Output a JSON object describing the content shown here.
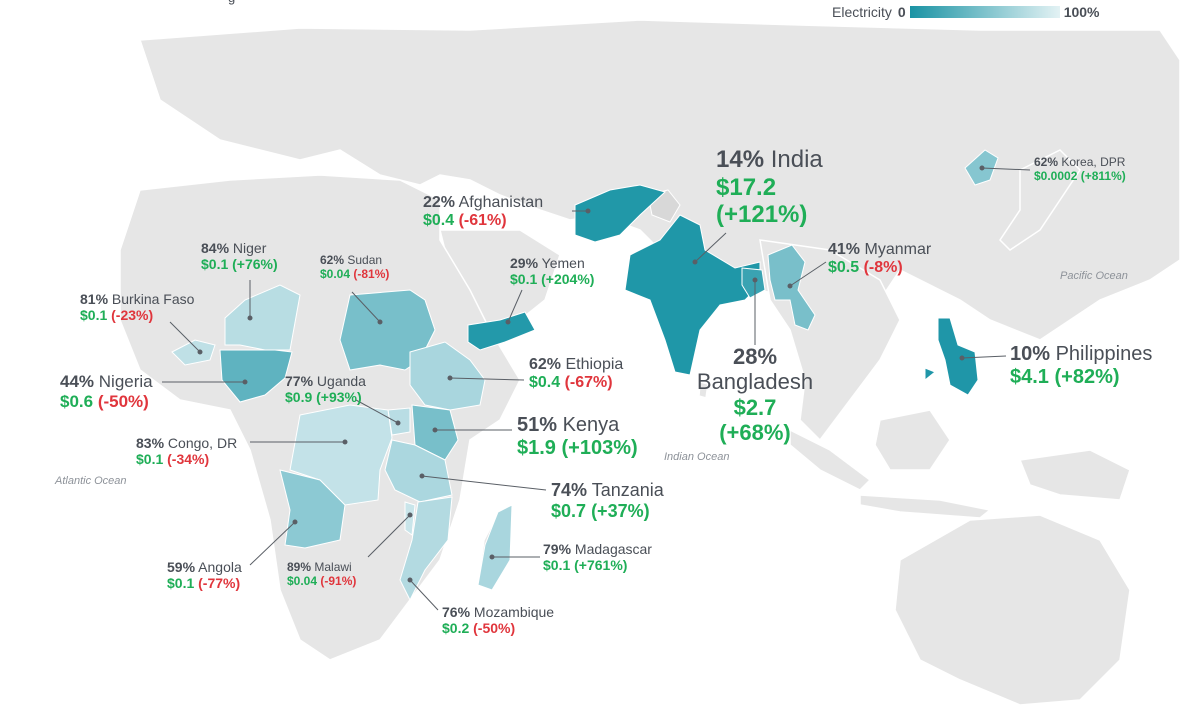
{
  "legend": {
    "label": "Electricity",
    "min_label": "0",
    "max_label": "100%",
    "color_low": "#1a93a4",
    "color_high": "#e3f2f4"
  },
  "oceans": {
    "atlantic": "Atlantic Ocean",
    "indian": "Indian Ocean",
    "pacific": "Pacific Ocean"
  },
  "colors": {
    "land": "#e6e6e6",
    "positive": "#1fae57",
    "negative": "#e0353c",
    "text": "#4a4f57"
  },
  "countries": {
    "india": {
      "pct": "14%",
      "name": "India",
      "value": "$17.2",
      "change": "(+121%)"
    },
    "afghanistan": {
      "pct": "22%",
      "name": "Afghanistan",
      "value": "$0.4",
      "change": "(-61%)"
    },
    "korea": {
      "pct": "62%",
      "name": "Korea, DPR",
      "value": "$0.0002",
      "change": "(+811%)"
    },
    "niger": {
      "pct": "84%",
      "name": "Niger",
      "value": "$0.1",
      "change": "(+76%)"
    },
    "sudan": {
      "pct": "62%",
      "name": "Sudan",
      "value": "$0.04",
      "change": "(-81%)"
    },
    "yemen": {
      "pct": "29%",
      "name": "Yemen",
      "value": "$0.1",
      "change": "(+204%)"
    },
    "myanmar": {
      "pct": "41%",
      "name": "Myanmar",
      "value": "$0.5",
      "change": "(-8%)"
    },
    "burkina": {
      "pct": "81%",
      "name": "Burkina Faso",
      "value": "$0.1",
      "change": "(-23%)"
    },
    "ethiopia": {
      "pct": "62%",
      "name": "Ethiopia",
      "value": "$0.4",
      "change": "(-67%)"
    },
    "bangladesh": {
      "pct": "28%",
      "name": "Bangladesh",
      "value": "$2.7",
      "change": "(+68%)"
    },
    "philippines": {
      "pct": "10%",
      "name": "Philippines",
      "value": "$4.1",
      "change": "(+82%)"
    },
    "nigeria": {
      "pct": "44%",
      "name": "Nigeria",
      "value": "$0.6",
      "change": "(-50%)"
    },
    "uganda": {
      "pct": "77%",
      "name": "Uganda",
      "value": "$0.9",
      "change": "(+93%)"
    },
    "kenya": {
      "pct": "51%",
      "name": "Kenya",
      "value": "$1.9",
      "change": "(+103%)"
    },
    "congo": {
      "pct": "83%",
      "name": "Congo, DR",
      "value": "$0.1",
      "change": "(-34%)"
    },
    "tanzania": {
      "pct": "74%",
      "name": "Tanzania",
      "value": "$0.7",
      "change": "(+37%)"
    },
    "angola": {
      "pct": "59%",
      "name": "Angola",
      "value": "$0.1",
      "change": "(-77%)"
    },
    "malawi": {
      "pct": "89%",
      "name": "Malawi",
      "value": "$0.04",
      "change": "(-91%)"
    },
    "madagascar": {
      "pct": "79%",
      "name": "Madagascar",
      "value": "$0.1",
      "change": "(+761%)"
    },
    "mozambique": {
      "pct": "76%",
      "name": "Mozambique",
      "value": "$0.2",
      "change": "(-50%)"
    }
  }
}
